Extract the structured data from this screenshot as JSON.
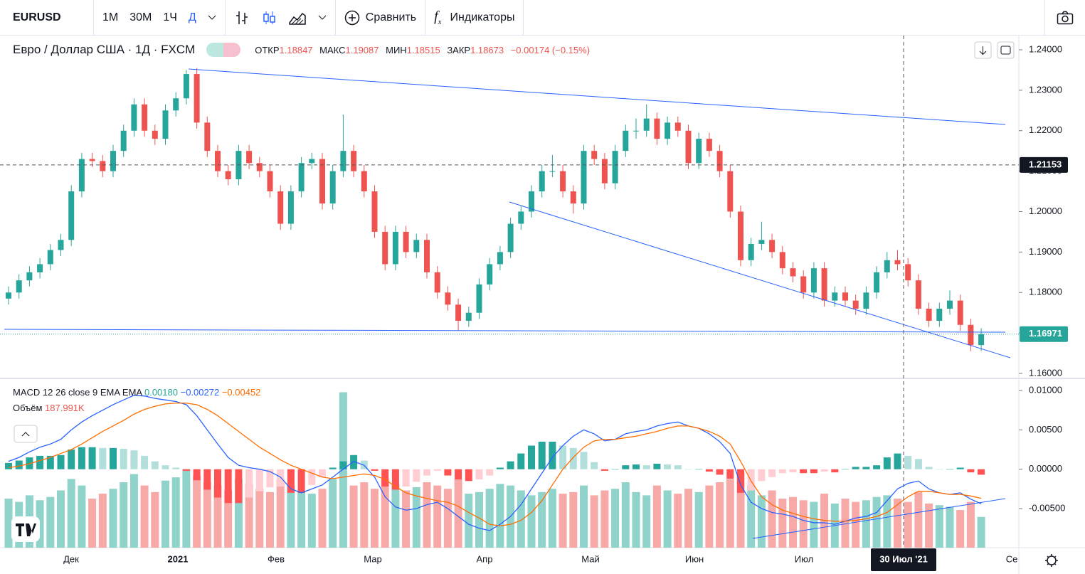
{
  "toolbar": {
    "symbol": "EURUSD",
    "intervals": [
      "1М",
      "30М",
      "1Ч",
      "Д"
    ],
    "compare": "Сравнить",
    "indicators": "Индикаторы"
  },
  "chart_data": [
    {
      "type": "candlestick",
      "title": "Евро / Доллар США · 1Д · FXCM",
      "ohlc_labels": [
        "ОТКР",
        "МАКС",
        "МИН",
        "ЗАКР"
      ],
      "ohlc_values": [
        "1.18847",
        "1.19087",
        "1.18515",
        "1.18673"
      ],
      "change": "−0.00174 (−0.15%)",
      "up_color": "#26a69a",
      "down_color": "#ef5350",
      "open": [
        1.1785,
        1.18,
        1.183,
        1.185,
        1.187,
        1.1905,
        1.193,
        1.205,
        1.213,
        1.2125,
        1.21,
        1.215,
        1.22,
        1.2265,
        1.22,
        1.218,
        1.225,
        1.228,
        1.234,
        1.222,
        1.215,
        1.21,
        1.208,
        1.215,
        1.212,
        1.21,
        1.205,
        1.197,
        1.205,
        1.212,
        1.213,
        1.202,
        1.21,
        1.215,
        1.21,
        1.205,
        1.195,
        1.187,
        1.195,
        1.19,
        1.193,
        1.185,
        1.18,
        1.177,
        1.173,
        1.175,
        1.182,
        1.187,
        1.19,
        1.197,
        1.2,
        1.205,
        1.21,
        1.21,
        1.205,
        1.202,
        1.215,
        1.213,
        1.207,
        1.215,
        1.22,
        1.22,
        1.223,
        1.218,
        1.222,
        1.22,
        1.212,
        1.218,
        1.215,
        1.21,
        1.2,
        1.188,
        1.192,
        1.193,
        1.19,
        1.186,
        1.184,
        1.18,
        1.186,
        1.178,
        1.18,
        1.178,
        1.176,
        1.18,
        1.185,
        1.188,
        1.187,
        1.183,
        1.176,
        1.173,
        1.176,
        1.178,
        1.172,
        1.167
      ],
      "high": [
        1.1815,
        1.1845,
        1.1865,
        1.1885,
        1.192,
        1.1945,
        1.2065,
        1.2145,
        1.2145,
        1.214,
        1.2165,
        1.2215,
        1.228,
        1.228,
        1.2215,
        1.2265,
        1.2295,
        1.235,
        1.2355,
        1.2235,
        1.2165,
        1.2115,
        1.2165,
        1.2165,
        1.2135,
        1.2115,
        1.2065,
        1.2065,
        1.2135,
        1.2145,
        1.2145,
        1.2115,
        1.224,
        1.2165,
        1.2115,
        1.2065,
        1.1965,
        1.1965,
        1.1965,
        1.1945,
        1.1945,
        1.1865,
        1.1815,
        1.1785,
        1.1765,
        1.1835,
        1.1885,
        1.1915,
        1.1985,
        1.2015,
        1.2065,
        1.2115,
        1.214,
        1.2115,
        1.2065,
        1.2165,
        1.2165,
        1.2145,
        1.2165,
        1.2215,
        1.223,
        1.2265,
        1.2245,
        1.2235,
        1.2235,
        1.2215,
        1.2195,
        1.2195,
        1.2165,
        1.2115,
        1.2015,
        1.1935,
        1.1975,
        1.1945,
        1.1915,
        1.1875,
        1.1855,
        1.1875,
        1.1875,
        1.1815,
        1.1815,
        1.1795,
        1.1815,
        1.1865,
        1.19,
        1.1905,
        1.1885,
        1.1845,
        1.1775,
        1.1775,
        1.1805,
        1.1795,
        1.1735,
        1.1712
      ],
      "low": [
        1.177,
        1.1785,
        1.1815,
        1.1835,
        1.1855,
        1.189,
        1.1915,
        1.2035,
        1.211,
        1.2085,
        1.2085,
        1.2135,
        1.2185,
        1.2185,
        1.2165,
        1.2165,
        1.2235,
        1.2265,
        1.2205,
        1.2135,
        1.2085,
        1.2065,
        1.2065,
        1.2105,
        1.2085,
        1.2035,
        1.1955,
        1.1955,
        1.2035,
        1.2105,
        1.2005,
        1.2005,
        1.2085,
        1.2085,
        1.2035,
        1.1935,
        1.1855,
        1.1855,
        1.1885,
        1.1885,
        1.1835,
        1.1785,
        1.1755,
        1.1705,
        1.1715,
        1.1735,
        1.1805,
        1.1855,
        1.1885,
        1.1955,
        1.1985,
        1.2035,
        1.2085,
        1.2035,
        1.1995,
        1.2005,
        1.2115,
        1.2055,
        1.2055,
        1.2135,
        1.218,
        1.2185,
        1.2165,
        1.2165,
        1.2185,
        1.2105,
        1.2105,
        1.2135,
        1.2085,
        1.1985,
        1.1865,
        1.1865,
        1.1905,
        1.1885,
        1.1845,
        1.1825,
        1.1785,
        1.1785,
        1.1765,
        1.1765,
        1.1765,
        1.1745,
        1.1745,
        1.1785,
        1.1835,
        1.1855,
        1.1815,
        1.1745,
        1.1715,
        1.1715,
        1.1745,
        1.1705,
        1.1655,
        1.1655
      ],
      "close": [
        1.18,
        1.183,
        1.185,
        1.187,
        1.1905,
        1.193,
        1.205,
        1.213,
        1.2125,
        1.21,
        1.215,
        1.22,
        1.2265,
        1.22,
        1.218,
        1.225,
        1.228,
        1.234,
        1.222,
        1.215,
        1.21,
        1.208,
        1.215,
        1.212,
        1.21,
        1.205,
        1.197,
        1.205,
        1.212,
        1.213,
        1.202,
        1.21,
        1.215,
        1.21,
        1.205,
        1.195,
        1.187,
        1.195,
        1.19,
        1.193,
        1.185,
        1.18,
        1.177,
        1.173,
        1.175,
        1.182,
        1.187,
        1.19,
        1.197,
        1.2,
        1.205,
        1.21,
        1.21,
        1.205,
        1.202,
        1.215,
        1.213,
        1.207,
        1.215,
        1.22,
        1.22,
        1.223,
        1.218,
        1.222,
        1.22,
        1.212,
        1.218,
        1.215,
        1.21,
        1.2,
        1.188,
        1.192,
        1.193,
        1.19,
        1.186,
        1.184,
        1.18,
        1.186,
        1.178,
        1.18,
        1.178,
        1.176,
        1.18,
        1.185,
        1.188,
        1.187,
        1.183,
        1.176,
        1.173,
        1.176,
        1.178,
        1.172,
        1.167,
        1.1697
      ],
      "ylim": [
        1.15912,
        1.24316
      ],
      "yticks": [
        {
          "value": 1.24,
          "label": "1.24000"
        },
        {
          "value": 1.23,
          "label": "1.23000"
        },
        {
          "value": 1.22,
          "label": "1.22000"
        },
        {
          "value": 1.21,
          "label": "1.21000"
        },
        {
          "value": 1.2,
          "label": "1.20000"
        },
        {
          "value": 1.19,
          "label": "1.19000"
        },
        {
          "value": 1.18,
          "label": "1.18000"
        },
        {
          "value": 1.17,
          "label": "1.17000"
        },
        {
          "value": 1.16,
          "label": "1.16000"
        }
      ],
      "last_price": {
        "value": 1.16971,
        "label": "1.16971"
      },
      "crosshair": {
        "value": 1.21153,
        "label": "1.21153",
        "date": "30 Июл '21"
      },
      "xtick_labels": [
        "Дек",
        "2021",
        "Фев",
        "Мар",
        "Апр",
        "Май",
        "Июн",
        "Июл",
        "Се"
      ]
    },
    {
      "type": "macd",
      "title": "MACD 12 26 close 9 EMA EMA",
      "legend_values": [
        "0.00180",
        "−0.00272",
        "−0.00452"
      ],
      "ylim": [
        -0.00997,
        0.01127
      ],
      "yticks": [
        {
          "value": 0.01,
          "label": "0.01000"
        },
        {
          "value": 0.005,
          "label": "0.00500"
        },
        {
          "value": 0,
          "label": "0.00000"
        },
        {
          "value": -0.005,
          "label": "-0.00500"
        }
      ],
      "histogram": {
        "colors": [
          "#26a69a",
          "#b2dfdb",
          "#ff5252",
          "#ffcdd2"
        ],
        "values": [
          0.0008,
          0.0011,
          0.0015,
          0.0017,
          0.0017,
          0.0018,
          0.0025,
          0.0028,
          0.0028,
          0.0027,
          0.0027,
          0.0026,
          0.0024,
          0.0017,
          0.001,
          0.0005,
          0.0002,
          -0.0002,
          -0.0014,
          -0.0026,
          -0.0036,
          -0.0043,
          -0.0043,
          -0.0036,
          -0.0028,
          -0.0023,
          -0.0022,
          -0.003,
          -0.003,
          -0.002,
          -0.001,
          0.0002,
          0.001,
          0.0018,
          0.0011,
          -0.0002,
          -0.0022,
          -0.0026,
          -0.0022,
          -0.0016,
          -0.0008,
          -0.0002,
          -0.0008,
          -0.0013,
          -0.0015,
          -0.0013,
          -0.0008,
          0.0002,
          0.001,
          0.002,
          0.003,
          0.0035,
          0.0035,
          0.003,
          0.0027,
          0.0022,
          0.0009,
          -0.0002,
          0.0,
          0.0005,
          0.0006,
          0.0005,
          0.0007,
          0.0006,
          0.0005,
          0.0,
          0.0,
          -0.0003,
          -0.0007,
          -0.0012,
          -0.003,
          -0.0027,
          -0.0015,
          -0.001,
          -0.0005,
          -0.0004,
          -0.0005,
          -0.0005,
          -0.0003,
          -0.0004,
          0.0,
          0.0003,
          0.0003,
          0.0005,
          0.0015,
          0.002,
          0.0017,
          0.0013,
          0.0003,
          0.0,
          0.0,
          0.0002,
          -0.0004,
          -0.0007
        ]
      },
      "series": [
        {
          "color": "#2962ff",
          "values": [
            0.001,
            0.0015,
            0.0022,
            0.0028,
            0.0032,
            0.0038,
            0.005,
            0.006,
            0.0068,
            0.0075,
            0.0082,
            0.0088,
            0.0094,
            0.0093,
            0.009,
            0.0088,
            0.0086,
            0.0082,
            0.0068,
            0.005,
            0.0032,
            0.0015,
            0.0005,
            0.0002,
            0.0,
            -0.0003,
            -0.001,
            -0.0025,
            -0.003,
            -0.0025,
            -0.002,
            -0.001,
            0.0,
            0.001,
            0.0005,
            -0.001,
            -0.0035,
            -0.0048,
            -0.0052,
            -0.005,
            -0.0045,
            -0.0042,
            -0.005,
            -0.006,
            -0.007,
            -0.0075,
            -0.0078,
            -0.007,
            -0.006,
            -0.0045,
            -0.0025,
            -0.0005,
            0.0015,
            0.003,
            0.0042,
            0.005,
            0.0045,
            0.0036,
            0.0038,
            0.0045,
            0.0048,
            0.005,
            0.0055,
            0.0058,
            0.006,
            0.0055,
            0.0052,
            0.0045,
            0.0035,
            0.002,
            -0.002,
            -0.0042,
            -0.005,
            -0.0055,
            -0.0057,
            -0.006,
            -0.0065,
            -0.0068,
            -0.0068,
            -0.007,
            -0.0066,
            -0.0062,
            -0.006,
            -0.0055,
            -0.004,
            -0.0025,
            -0.0018,
            -0.0015,
            -0.0025,
            -0.003,
            -0.0032,
            -0.003,
            -0.0038,
            -0.0044
          ]
        },
        {
          "color": "#ff6d00",
          "values": [
            0.0002,
            0.0004,
            0.0007,
            0.0011,
            0.0015,
            0.002,
            0.0025,
            0.0032,
            0.004,
            0.0048,
            0.0055,
            0.0062,
            0.007,
            0.0076,
            0.008,
            0.0083,
            0.0084,
            0.0084,
            0.0082,
            0.0076,
            0.0068,
            0.0058,
            0.0048,
            0.0038,
            0.0028,
            0.002,
            0.0012,
            0.0005,
            0.0,
            -0.0005,
            -0.001,
            -0.0012,
            -0.001,
            -0.0008,
            -0.0006,
            -0.0008,
            -0.0013,
            -0.0022,
            -0.003,
            -0.0034,
            -0.0037,
            -0.004,
            -0.0042,
            -0.0047,
            -0.0055,
            -0.0062,
            -0.007,
            -0.0072,
            -0.007,
            -0.0065,
            -0.0055,
            -0.004,
            -0.002,
            0.0,
            0.0015,
            0.0028,
            0.0036,
            0.0038,
            0.0038,
            0.004,
            0.0042,
            0.0045,
            0.0048,
            0.0052,
            0.0055,
            0.0055,
            0.0052,
            0.0048,
            0.0042,
            0.0032,
            0.001,
            -0.0015,
            -0.0035,
            -0.0045,
            -0.0052,
            -0.0056,
            -0.006,
            -0.0063,
            -0.0065,
            -0.0066,
            -0.0066,
            -0.0065,
            -0.0063,
            -0.006,
            -0.0055,
            -0.0045,
            -0.0035,
            -0.0028,
            -0.0028,
            -0.003,
            -0.0032,
            -0.0032,
            -0.0034,
            -0.0037
          ]
        }
      ]
    },
    {
      "type": "bar",
      "title": "Объём",
      "legend_value": "187.991K",
      "up_color": "#8fd3cb",
      "down_color": "#f7a9a8",
      "ylim": [
        0,
        1000000
      ],
      "values": [
        300000,
        280000,
        320000,
        290000,
        310000,
        350000,
        420000,
        380000,
        300000,
        330000,
        360000,
        400000,
        450000,
        380000,
        340000,
        410000,
        430000,
        480000,
        440000,
        400000,
        380000,
        350000,
        420000,
        390000,
        360000,
        340000,
        420000,
        380000,
        350000,
        330000,
        360000,
        420000,
        950000,
        380000,
        400000,
        360000,
        420000,
        390000,
        350000,
        370000,
        400000,
        380000,
        360000,
        420000,
        330000,
        340000,
        360000,
        390000,
        380000,
        350000,
        320000,
        340000,
        360000,
        330000,
        340000,
        380000,
        320000,
        350000,
        360000,
        400000,
        340000,
        320000,
        380000,
        350000,
        330000,
        360000,
        340000,
        380000,
        400000,
        420000,
        460000,
        380000,
        320000,
        350000,
        300000,
        310000,
        290000,
        280000,
        330000,
        270000,
        300000,
        280000,
        290000,
        310000,
        320000,
        300000,
        280000,
        340000,
        270000,
        260000,
        250000,
        230000,
        280000,
        187991
      ]
    }
  ]
}
